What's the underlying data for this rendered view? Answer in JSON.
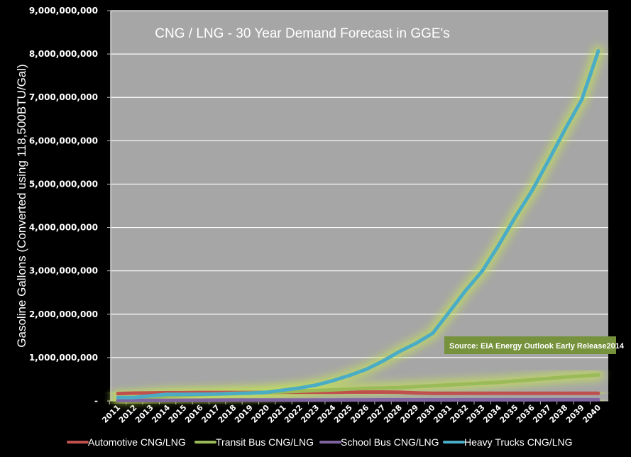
{
  "chart_data": {
    "type": "line",
    "title": "CNG / LNG - 30 Year Demand Forecast  in GGE's",
    "xlabel": "",
    "ylabel": "Gasoline Gallons (Converted using 118,500BTU/Gal)",
    "ylim": [
      0,
      9000000000
    ],
    "grid": true,
    "legend_position": "bottom",
    "yticks": [
      0,
      1000000000,
      2000000000,
      3000000000,
      4000000000,
      5000000000,
      6000000000,
      7000000000,
      8000000000,
      9000000000
    ],
    "ytick_labels": [
      "-",
      "1,000,000,000",
      "2,000,000,000",
      "3,000,000,000",
      "4,000,000,000",
      "5,000,000,000",
      "6,000,000,000",
      "7,000,000,000",
      "8,000,000,000",
      "9,000,000,000"
    ],
    "categories": [
      "2011",
      "2012",
      "2013",
      "2014",
      "2015",
      "2016",
      "2017",
      "2018",
      "2019",
      "2020",
      "2021",
      "2022",
      "2023",
      "2024",
      "2025",
      "2026",
      "2027",
      "2028",
      "2029",
      "2030",
      "2031",
      "2032",
      "2033",
      "2034",
      "2035",
      "2036",
      "2037",
      "2038",
      "2039",
      "2040"
    ],
    "series": [
      {
        "name": "Automotive CNG/LNG",
        "color": "#c0504d",
        "values": [
          170000000,
          180000000,
          185000000,
          190000000,
          190000000,
          195000000,
          195000000,
          195000000,
          195000000,
          195000000,
          200000000,
          200000000,
          200000000,
          200000000,
          205000000,
          205000000,
          205000000,
          200000000,
          185000000,
          175000000,
          175000000,
          175000000,
          175000000,
          175000000,
          175000000,
          175000000,
          175000000,
          175000000,
          175000000,
          175000000
        ]
      },
      {
        "name": "Transit Bus CNG/LNG",
        "color": "#9bbb59",
        "values": [
          50000000,
          70000000,
          90000000,
          110000000,
          130000000,
          145000000,
          160000000,
          175000000,
          185000000,
          195000000,
          210000000,
          225000000,
          240000000,
          255000000,
          275000000,
          290000000,
          300000000,
          310000000,
          330000000,
          350000000,
          370000000,
          390000000,
          410000000,
          430000000,
          460000000,
          490000000,
          520000000,
          550000000,
          575000000,
          600000000
        ]
      },
      {
        "name": "School Bus CNG/LNG",
        "color": "#8064a2",
        "values": [
          10000000,
          12000000,
          14000000,
          15000000,
          16000000,
          17000000,
          18000000,
          19000000,
          20000000,
          20000000,
          21000000,
          21000000,
          22000000,
          22000000,
          23000000,
          23000000,
          24000000,
          24000000,
          25000000,
          25000000,
          25000000,
          26000000,
          26000000,
          26000000,
          27000000,
          27000000,
          27000000,
          28000000,
          28000000,
          28000000
        ]
      },
      {
        "name": "Heavy Trucks CNG/LNG",
        "color": "#4bacc6",
        "values": [
          80000000,
          80000000,
          120000000,
          150000000,
          150000000,
          155000000,
          160000000,
          170000000,
          180000000,
          200000000,
          250000000,
          300000000,
          370000000,
          470000000,
          590000000,
          730000000,
          920000000,
          1140000000,
          1330000000,
          1560000000,
          2050000000,
          2550000000,
          3000000000,
          3600000000,
          4250000000,
          4850000000,
          5550000000,
          6270000000,
          6950000000,
          8070000000
        ]
      }
    ],
    "annotations": [
      {
        "text": "Source: EIA Energy Outlook Early Release2014",
        "background": "#76923c"
      }
    ],
    "colors": {
      "page_background": "#000000",
      "plot_background": "#a6a6a6",
      "gridline": "#ffffff",
      "glow": "#c3e05a"
    }
  }
}
